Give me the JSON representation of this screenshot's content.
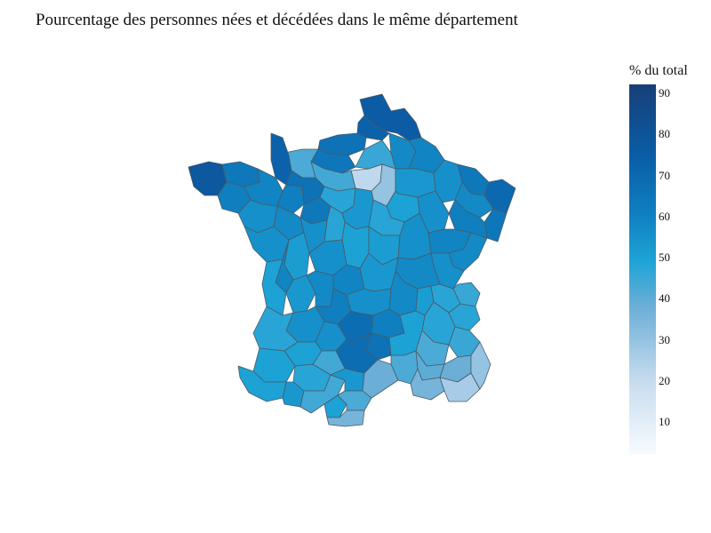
{
  "title": "Pourcentage des personnes nées et décédées dans le même département",
  "colorbar": {
    "title": "% du total",
    "min": 2,
    "max": 92,
    "ticks": [
      "10",
      "20",
      "30",
      "40",
      "50",
      "60",
      "70",
      "80",
      "90"
    ],
    "colors": [
      "#f7fbff",
      "#c6dbef",
      "#6baed6",
      "#1ea4d6",
      "#0f7fc0",
      "#0a5ea8",
      "#173f78"
    ]
  },
  "regions": [
    {
      "name": "nord",
      "value": 78
    },
    {
      "name": "pas-de-calais",
      "value": 75
    },
    {
      "name": "somme",
      "value": 68
    },
    {
      "name": "aisne",
      "value": 58
    },
    {
      "name": "seine-maritime",
      "value": 66
    },
    {
      "name": "oise",
      "value": 42
    },
    {
      "name": "paris-area",
      "value": 18
    },
    {
      "name": "seine-et-marne",
      "value": 25
    },
    {
      "name": "calvados",
      "value": 38
    },
    {
      "name": "manche",
      "value": 75
    },
    {
      "name": "eure",
      "value": 40
    },
    {
      "name": "finistere",
      "value": 80
    },
    {
      "name": "cotes-d-armor",
      "value": 65
    },
    {
      "name": "morbihan",
      "value": 62
    },
    {
      "name": "ille-et-vilaine",
      "value": 60
    },
    {
      "name": "mayenne",
      "value": 62
    },
    {
      "name": "orne",
      "value": 68
    },
    {
      "name": "sarthe",
      "value": 65
    },
    {
      "name": "eure-et-loir",
      "value": 45
    },
    {
      "name": "loire-atlantique",
      "value": 55
    },
    {
      "name": "maine-et-loire",
      "value": 58
    },
    {
      "name": "vendee",
      "value": 55
    },
    {
      "name": "ardennes",
      "value": 60
    },
    {
      "name": "marne",
      "value": 52
    },
    {
      "name": "meuse",
      "value": 55
    },
    {
      "name": "moselle",
      "value": 65
    },
    {
      "name": "bas-rhin",
      "value": 72
    },
    {
      "name": "haut-rhin",
      "value": 66
    },
    {
      "name": "meurthe-et-moselle",
      "value": 58
    },
    {
      "name": "vosges",
      "value": 62
    },
    {
      "name": "aube",
      "value": 48
    },
    {
      "name": "haute-marne",
      "value": 55
    },
    {
      "name": "yonne",
      "value": 45
    },
    {
      "name": "loiret",
      "value": 52
    },
    {
      "name": "loir-et-cher",
      "value": 45
    },
    {
      "name": "indre-et-loire",
      "value": 55
    },
    {
      "name": "cher",
      "value": 48
    },
    {
      "name": "nievre",
      "value": 50
    },
    {
      "name": "cote-d-or",
      "value": 55
    },
    {
      "name": "haute-saone",
      "value": 60
    },
    {
      "name": "doubs",
      "value": 58
    },
    {
      "name": "jura",
      "value": 55
    },
    {
      "name": "saone-et-loire",
      "value": 58
    },
    {
      "name": "vienne",
      "value": 50
    },
    {
      "name": "deux-sevres",
      "value": 60
    },
    {
      "name": "charente-maritime",
      "value": 48
    },
    {
      "name": "charente",
      "value": 52
    },
    {
      "name": "indre",
      "value": 55
    },
    {
      "name": "creuse",
      "value": 60
    },
    {
      "name": "allier",
      "value": 52
    },
    {
      "name": "haute-vienne",
      "value": 58
    },
    {
      "name": "correze",
      "value": 62
    },
    {
      "name": "puy-de-dome",
      "value": 55
    },
    {
      "name": "loire",
      "value": 58
    },
    {
      "name": "rhone",
      "value": 50
    },
    {
      "name": "ain",
      "value": 45
    },
    {
      "name": "haute-savoie",
      "value": 42
    },
    {
      "name": "savoie",
      "value": 45
    },
    {
      "name": "isere",
      "value": 45
    },
    {
      "name": "dordogne",
      "value": 55
    },
    {
      "name": "gironde",
      "value": 45
    },
    {
      "name": "lot",
      "value": 55
    },
    {
      "name": "cantal",
      "value": 70
    },
    {
      "name": "haute-loire",
      "value": 62
    },
    {
      "name": "lozere",
      "value": 68
    },
    {
      "name": "aveyron",
      "value": 70
    },
    {
      "name": "lot-et-garonne",
      "value": 48
    },
    {
      "name": "landes",
      "value": 48
    },
    {
      "name": "ardeche",
      "value": 48
    },
    {
      "name": "drome",
      "value": 38
    },
    {
      "name": "hautes-alpes",
      "value": 42
    },
    {
      "name": "tarn-et-garonne",
      "value": 40
    },
    {
      "name": "gers",
      "value": 45
    },
    {
      "name": "pyrenees-atlantiques",
      "value": 48
    },
    {
      "name": "hautes-pyrenees",
      "value": 52
    },
    {
      "name": "haute-garonne",
      "value": 40
    },
    {
      "name": "tarn",
      "value": 52
    },
    {
      "name": "herault",
      "value": 32
    },
    {
      "name": "gard",
      "value": 38
    },
    {
      "name": "vaucluse",
      "value": 35
    },
    {
      "name": "alpes-de-haute-provence",
      "value": 32
    },
    {
      "name": "alpes-maritimes",
      "value": 25
    },
    {
      "name": "var",
      "value": 22
    },
    {
      "name": "bouches-du-rhone",
      "value": 30
    },
    {
      "name": "ariege",
      "value": 48
    },
    {
      "name": "aude",
      "value": 38
    },
    {
      "name": "pyrenees-orientales",
      "value": 30
    }
  ]
}
